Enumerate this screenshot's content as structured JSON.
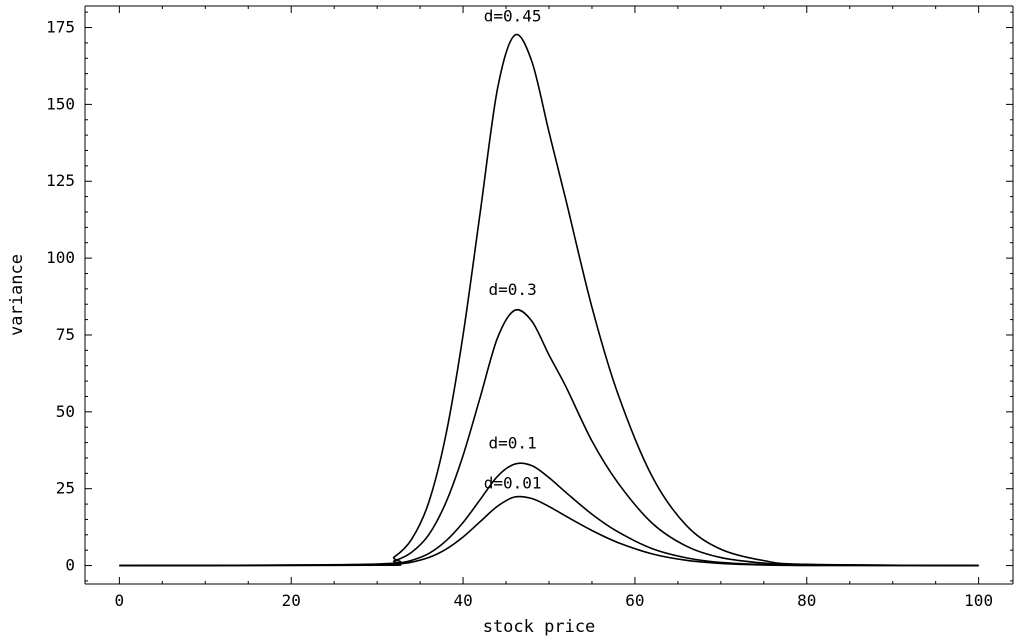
{
  "chart_data": {
    "type": "line",
    "title": "",
    "xlabel": "stock price",
    "ylabel": "variance",
    "xlim": [
      -4,
      104
    ],
    "ylim": [
      -6,
      182
    ],
    "x_ticks": [
      0,
      20,
      40,
      60,
      80,
      100
    ],
    "y_ticks": [
      0,
      25,
      50,
      75,
      100,
      125,
      150,
      175
    ],
    "x_minor_step": 5,
    "y_minor_step": 5,
    "grid": false,
    "legend": "none",
    "x": [
      0,
      30,
      32,
      34,
      36,
      38,
      40,
      42,
      44,
      46,
      48,
      50,
      52,
      55,
      58,
      62,
      66,
      70,
      75,
      80,
      100
    ],
    "series": [
      {
        "name": "d=0.01",
        "label_at": [
          46,
          25
        ],
        "values": [
          0,
          0.1,
          0.4,
          1.1,
          2.6,
          5.3,
          9.3,
          14.3,
          19.3,
          22.3,
          21.8,
          19.2,
          16.0,
          11.4,
          7.5,
          3.8,
          1.7,
          0.7,
          0.2,
          0.05,
          0
        ]
      },
      {
        "name": "d=0.1",
        "label_at": [
          46,
          38
        ],
        "values": [
          0,
          0.1,
          0.6,
          1.7,
          3.9,
          8.0,
          14.0,
          21.5,
          29.0,
          33.0,
          32.5,
          28.6,
          23.7,
          16.7,
          11.0,
          5.5,
          2.5,
          1.0,
          0.3,
          0.07,
          0
        ]
      },
      {
        "name": "d=0.3",
        "label_at": [
          46,
          88
        ],
        "values": [
          0,
          0.3,
          1.5,
          4.3,
          10.0,
          20.5,
          35.8,
          54.8,
          74.0,
          83.0,
          79.5,
          68.5,
          58.0,
          40.5,
          27.0,
          13.8,
          6.3,
          2.6,
          0.8,
          0.2,
          0
        ]
      },
      {
        "name": "d=0.45",
        "label_at": [
          46,
          177
        ],
        "values": [
          0,
          0.5,
          2.8,
          8.5,
          20.5,
          42.5,
          75.0,
          115.0,
          155.0,
          172.5,
          164.0,
          141.0,
          118.5,
          84.0,
          56.0,
          29.0,
          13.0,
          5.3,
          1.6,
          0.4,
          0
        ]
      }
    ]
  }
}
